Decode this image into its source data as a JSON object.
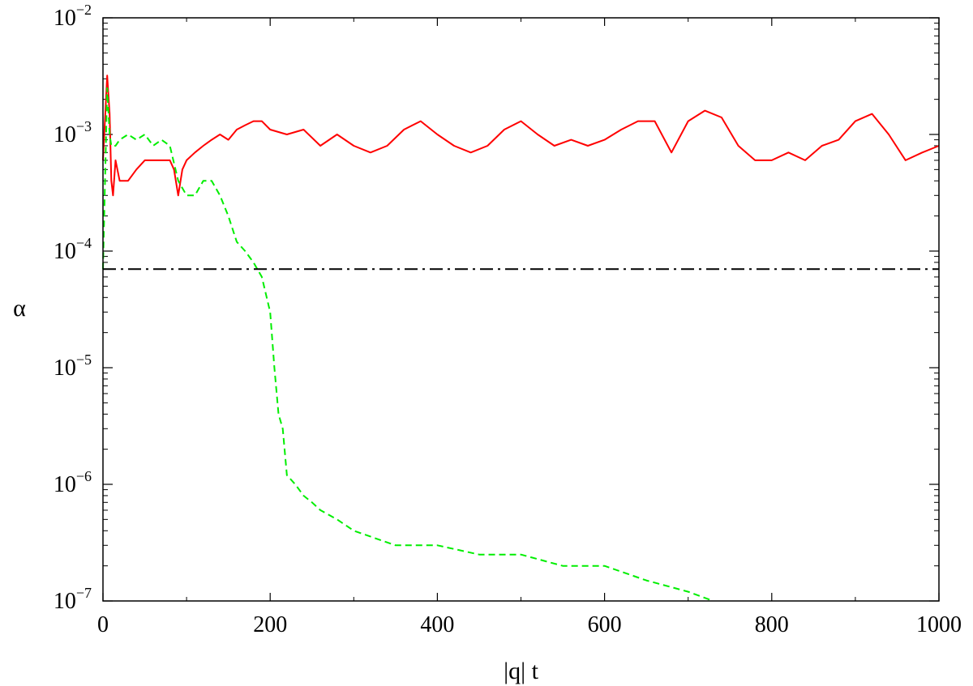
{
  "chart_data": {
    "type": "line",
    "title": "",
    "xlabel": "|q| t",
    "ylabel": "α",
    "xlim": [
      0,
      1000
    ],
    "ylim": [
      1e-07,
      0.01
    ],
    "yscale": "log",
    "grid": false,
    "legend": "none",
    "x_ticks": [
      0,
      200,
      400,
      600,
      800,
      1000
    ],
    "x_tick_labels": [
      "0",
      "200",
      "400",
      "600",
      "800",
      "1000"
    ],
    "y_ticks": [
      0.01,
      0.001,
      0.0001,
      1e-05,
      1e-06,
      1e-07
    ],
    "y_tick_labels": [
      {
        "base": "10",
        "exp": "−2"
      },
      {
        "base": "10",
        "exp": "−3"
      },
      {
        "base": "10",
        "exp": "−4"
      },
      {
        "base": "10",
        "exp": "−5"
      },
      {
        "base": "10",
        "exp": "−6"
      },
      {
        "base": "10",
        "exp": "−7"
      }
    ],
    "series": [
      {
        "color": "#ff0000",
        "style": "solid",
        "x": [
          0,
          5,
          8,
          10,
          12,
          15,
          20,
          30,
          40,
          50,
          60,
          70,
          80,
          85,
          90,
          95,
          100,
          110,
          120,
          130,
          140,
          150,
          160,
          170,
          180,
          190,
          200,
          220,
          240,
          260,
          280,
          300,
          320,
          340,
          360,
          380,
          400,
          420,
          440,
          460,
          480,
          500,
          520,
          540,
          560,
          580,
          600,
          620,
          640,
          660,
          680,
          700,
          720,
          740,
          760,
          780,
          800,
          820,
          840,
          860,
          880,
          900,
          920,
          940,
          960,
          980,
          1000
        ],
        "y": [
          0.0006,
          0.0032,
          0.0015,
          0.0004,
          0.0003,
          0.0006,
          0.0004,
          0.0004,
          0.0005,
          0.0006,
          0.0006,
          0.0006,
          0.0006,
          0.0005,
          0.0003,
          0.0005,
          0.0006,
          0.0007,
          0.0008,
          0.0009,
          0.001,
          0.0009,
          0.0011,
          0.0012,
          0.0013,
          0.0013,
          0.0011,
          0.001,
          0.0011,
          0.0008,
          0.001,
          0.0008,
          0.0007,
          0.0008,
          0.0011,
          0.0013,
          0.001,
          0.0008,
          0.0007,
          0.0008,
          0.0011,
          0.0013,
          0.001,
          0.0008,
          0.0009,
          0.0008,
          0.0009,
          0.0011,
          0.0013,
          0.0013,
          0.0007,
          0.0013,
          0.0016,
          0.0014,
          0.0008,
          0.0006,
          0.0006,
          0.0007,
          0.0006,
          0.0008,
          0.0009,
          0.0013,
          0.0015,
          0.001,
          0.0006,
          0.0007,
          0.0008
        ]
      },
      {
        "color": "#00ee00",
        "style": "dashed",
        "x": [
          0,
          5,
          8,
          10,
          15,
          20,
          30,
          40,
          50,
          60,
          70,
          80,
          90,
          100,
          110,
          120,
          130,
          140,
          150,
          160,
          170,
          180,
          190,
          200,
          205,
          210,
          215,
          220,
          230,
          240,
          250,
          260,
          280,
          300,
          350,
          400,
          450,
          500,
          550,
          600,
          650,
          700,
          730
        ],
        "y": [
          7e-05,
          0.0025,
          0.001,
          0.0008,
          0.0008,
          0.0009,
          0.001,
          0.0009,
          0.001,
          0.0008,
          0.0009,
          0.0008,
          0.0004,
          0.0003,
          0.0003,
          0.0004,
          0.0004,
          0.0003,
          0.0002,
          0.00012,
          0.0001,
          8e-05,
          6e-05,
          3e-05,
          1e-05,
          4e-06,
          3e-06,
          1.2e-06,
          1e-06,
          8e-07,
          7e-07,
          6e-07,
          5e-07,
          4e-07,
          3e-07,
          3e-07,
          2.5e-07,
          2.5e-07,
          2e-07,
          2e-07,
          1.5e-07,
          1.2e-07,
          1e-07
        ]
      },
      {
        "color": "#000000",
        "style": "dash-dot",
        "x": [
          0,
          1000
        ],
        "y": [
          7e-05,
          7e-05
        ]
      }
    ]
  }
}
